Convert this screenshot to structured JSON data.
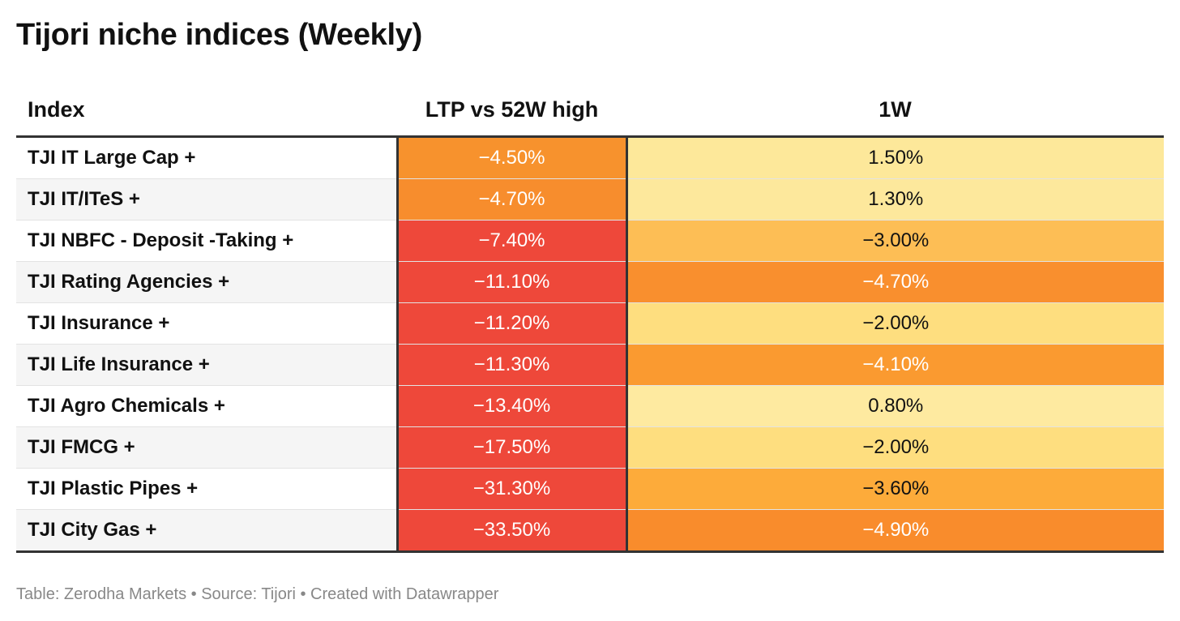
{
  "chart_data": {
    "type": "table",
    "title": "Tijori niche indices (Weekly)",
    "columns": [
      "Index",
      "LTP vs 52W high",
      "1W"
    ],
    "rows": [
      {
        "index": "TJI IT Large Cap +",
        "ltp_vs_52w_high": "−4.50%",
        "one_week": "1.50%",
        "ltp_color": "#f7922d",
        "w1_color": "#fde89a"
      },
      {
        "index": "TJI IT/ITeS +",
        "ltp_vs_52w_high": "−4.70%",
        "one_week": "1.30%",
        "ltp_color": "#f78d2d",
        "w1_color": "#fde89c"
      },
      {
        "index": "TJI NBFC - Deposit -Taking +",
        "ltp_vs_52w_high": "−7.40%",
        "one_week": "−3.00%",
        "ltp_color": "#ee483a",
        "w1_color": "#fdbe55"
      },
      {
        "index": "TJI Rating Agencies +",
        "ltp_vs_52w_high": "−11.10%",
        "one_week": "−4.70%",
        "ltp_color": "#ee483a",
        "w1_color": "#f98f2e"
      },
      {
        "index": "TJI Insurance +",
        "ltp_vs_52w_high": "−11.20%",
        "one_week": "−2.00%",
        "ltp_color": "#ee483a",
        "w1_color": "#fede7f"
      },
      {
        "index": "TJI Life Insurance +",
        "ltp_vs_52w_high": "−11.30%",
        "one_week": "−4.10%",
        "ltp_color": "#ee483a",
        "w1_color": "#fa9a30"
      },
      {
        "index": "TJI Agro Chemicals +",
        "ltp_vs_52w_high": "−13.40%",
        "one_week": "0.80%",
        "ltp_color": "#ee483a",
        "w1_color": "#feeaa0"
      },
      {
        "index": "TJI FMCG +",
        "ltp_vs_52w_high": "−17.50%",
        "one_week": "−2.00%",
        "ltp_color": "#ee483a",
        "w1_color": "#fede7f"
      },
      {
        "index": "TJI Plastic Pipes +",
        "ltp_vs_52w_high": "−31.30%",
        "one_week": "−3.60%",
        "ltp_color": "#ee483a",
        "w1_color": "#fdab3a"
      },
      {
        "index": "TJI City Gas +",
        "ltp_vs_52w_high": "−33.50%",
        "one_week": "−4.90%",
        "ltp_color": "#ee483a",
        "w1_color": "#f98c2c"
      }
    ],
    "footer": "Table: Zerodha Markets • Source: Tijori • Created with Datawrapper"
  }
}
